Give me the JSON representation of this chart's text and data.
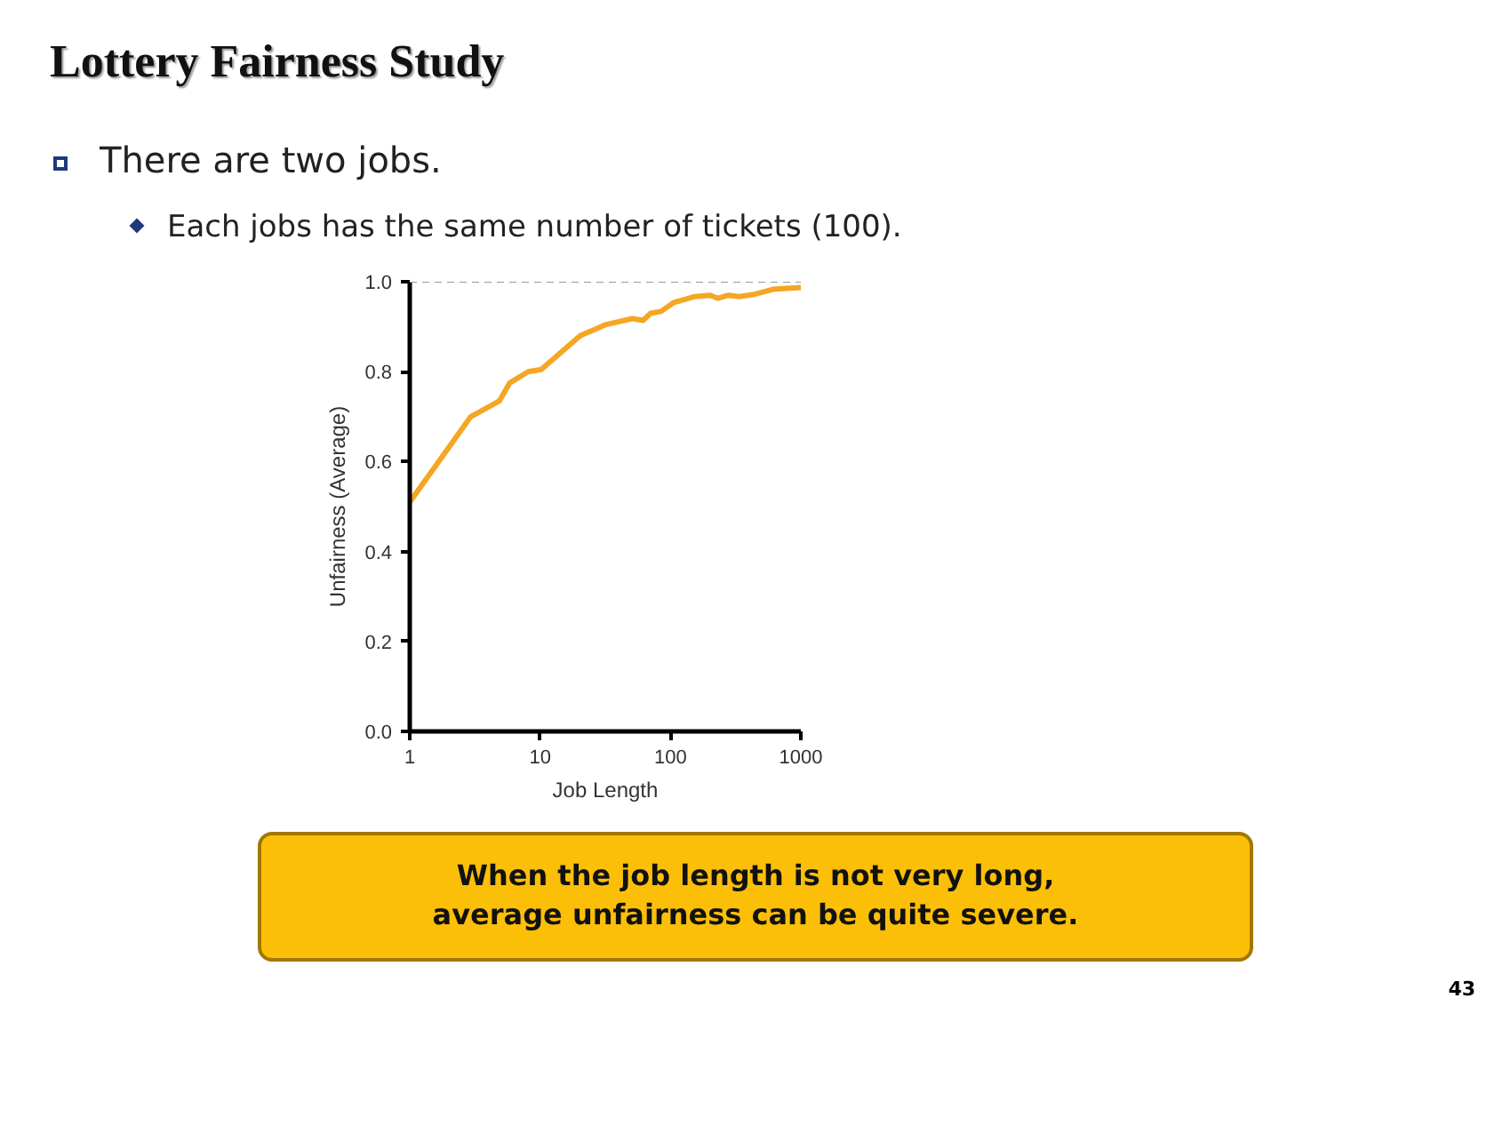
{
  "chart_data": {
    "type": "line",
    "title": "Lottery Fairness Study",
    "xlabel": "Job Length",
    "ylabel": "Unfairness (Average)",
    "log": "x",
    "x": [
      1,
      2.94,
      4.88,
      5.85,
      8.1,
      10.2,
      20.3,
      32.2,
      51,
      61.7,
      70.4,
      84.6,
      106.6,
      153.5,
      202,
      232,
      279,
      336,
      441,
      610,
      1000
    ],
    "series": [
      {
        "color": "#f5a623",
        "values": [
          0.51,
          0.7,
          0.735,
          0.775,
          0.8,
          0.805,
          0.88,
          0.905,
          0.918,
          0.914,
          0.93,
          0.934,
          0.954,
          0.967,
          0.97,
          0.963,
          0.97,
          0.967,
          0.972,
          0.983,
          0.987
        ]
      }
    ],
    "xlim": [
      1,
      1000
    ],
    "xticks": [
      1,
      10,
      100,
      1000
    ],
    "ylim": [
      0,
      1.0
    ],
    "yticks": [
      {
        "value": 0,
        "label": "0.0"
      },
      {
        "value": 0.2,
        "label": "0.2"
      },
      {
        "value": 0.4,
        "label": "0.4"
      },
      {
        "value": 0.6,
        "label": "0.6"
      },
      {
        "value": 0.8,
        "label": "0.8"
      },
      {
        "value": 1.0,
        "label": "1.0"
      }
    ],
    "ref_lines": [
      {
        "axis": "y",
        "value": 1.0,
        "color": "#999999",
        "line_style": "dashed"
      }
    ],
    "grid": false,
    "marker": "none",
    "line_style": "solid",
    "annotations": [
      "There are two jobs.",
      "Each jobs has the same number of tickets (100).",
      "When the job length is not very long, average unfairness can be quite severe.",
      "43"
    ]
  }
}
